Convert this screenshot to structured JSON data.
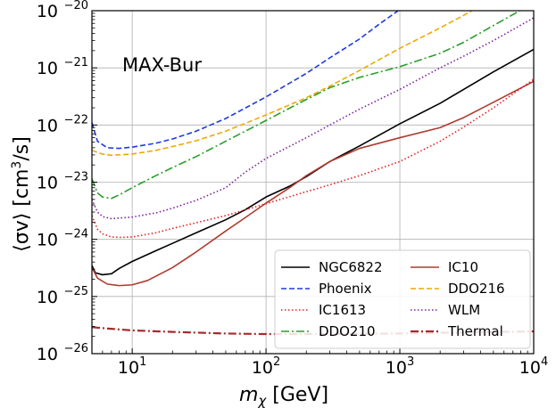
{
  "chart_data": {
    "type": "line",
    "annotation": "MAX-Bur",
    "xlabel": "m_χ [GeV]",
    "xlabel_main": "m",
    "xlabel_sub": "χ",
    "xlabel_unit": " [GeV]",
    "ylabel": "⟨σv⟩ [cm³/s]",
    "ylabel_main": "⟨σv⟩ [cm",
    "ylabel_sup": "3",
    "ylabel_unit": "/s]",
    "xscale": "log",
    "yscale": "log",
    "xlim": [
      5,
      10000
    ],
    "ylim": [
      1e-26,
      1e-20
    ],
    "grid": true,
    "legend_position": "lower-right",
    "legend_columns": 2,
    "x_ticks": [
      {
        "value": 10,
        "base": "10",
        "exp": "1"
      },
      {
        "value": 100,
        "base": "10",
        "exp": "2"
      },
      {
        "value": 1000,
        "base": "10",
        "exp": "3"
      },
      {
        "value": 10000,
        "base": "10",
        "exp": "4"
      }
    ],
    "y_ticks": [
      {
        "value": 1e-26,
        "base": "10",
        "exp": "−26"
      },
      {
        "value": 1e-25,
        "base": "10",
        "exp": "−25"
      },
      {
        "value": 1e-24,
        "base": "10",
        "exp": "−24"
      },
      {
        "value": 1e-23,
        "base": "10",
        "exp": "−23"
      },
      {
        "value": 1e-22,
        "base": "10",
        "exp": "−22"
      },
      {
        "value": 1e-21,
        "base": "10",
        "exp": "−21"
      },
      {
        "value": 1e-20,
        "base": "10",
        "exp": "−20"
      }
    ],
    "series": [
      {
        "name": "NGC6822",
        "color": "#000000",
        "style": "solid",
        "points": [
          [
            5,
            3.5e-25
          ],
          [
            5.3,
            2.6e-25
          ],
          [
            6,
            2.4e-25
          ],
          [
            7,
            2.5e-25
          ],
          [
            8,
            3.1e-25
          ],
          [
            10,
            4.1e-25
          ],
          [
            15,
            6.3e-25
          ],
          [
            20,
            8.5e-25
          ],
          [
            30,
            1.3e-24
          ],
          [
            50,
            2.2e-24
          ],
          [
            70,
            3.3e-24
          ],
          [
            100,
            5.5e-24
          ],
          [
            150,
            8.5e-24
          ],
          [
            200,
            1.25e-23
          ],
          [
            300,
            2.3e-23
          ],
          [
            500,
            4.3e-23
          ],
          [
            1000,
            1.05e-22
          ],
          [
            2000,
            2.4e-22
          ],
          [
            5000,
            8.5e-22
          ],
          [
            10000,
            2.1e-21
          ]
        ]
      },
      {
        "name": "IC10",
        "color": "#b03a2e",
        "style": "solid",
        "points": [
          [
            5,
            3.2e-25
          ],
          [
            5.5,
            2.1e-25
          ],
          [
            6.5,
            1.65e-25
          ],
          [
            8,
            1.55e-25
          ],
          [
            10,
            1.6e-25
          ],
          [
            13,
            1.9e-25
          ],
          [
            20,
            3.2e-25
          ],
          [
            30,
            6e-25
          ],
          [
            50,
            1.4e-24
          ],
          [
            70,
            2.4e-24
          ],
          [
            100,
            4.3e-24
          ],
          [
            150,
            8e-24
          ],
          [
            200,
            1.3e-23
          ],
          [
            300,
            2.3e-23
          ],
          [
            500,
            3.9e-23
          ],
          [
            1000,
            6e-23
          ],
          [
            2000,
            9e-23
          ],
          [
            3000,
            1.35e-22
          ],
          [
            5000,
            2.5e-22
          ],
          [
            10000,
            5.8e-22
          ]
        ]
      },
      {
        "name": "Phoenix",
        "color": "#1f3ae0",
        "style": "dashed",
        "points": [
          [
            5,
            1.1e-22
          ],
          [
            5.5,
            5.2e-23
          ],
          [
            6.5,
            4e-23
          ],
          [
            8,
            3.9e-23
          ],
          [
            10,
            4.1e-23
          ],
          [
            15,
            4.8e-23
          ],
          [
            20,
            5.7e-23
          ],
          [
            30,
            7.8e-23
          ],
          [
            50,
            1.3e-22
          ],
          [
            100,
            3.1e-22
          ],
          [
            200,
            8e-22
          ],
          [
            300,
            1.5e-21
          ],
          [
            500,
            3.2e-21
          ],
          [
            700,
            5.8e-21
          ],
          [
            900,
            8.8e-21
          ],
          [
            1000,
            1.05e-20
          ]
        ]
      },
      {
        "name": "DDO216",
        "color": "#f0a800",
        "style": "dashed",
        "points": [
          [
            5,
            3.6e-23
          ],
          [
            6,
            3.1e-23
          ],
          [
            7,
            2.95e-23
          ],
          [
            10,
            3.1e-23
          ],
          [
            15,
            3.6e-23
          ],
          [
            20,
            4.2e-23
          ],
          [
            30,
            5.3e-23
          ],
          [
            50,
            7.8e-23
          ],
          [
            100,
            1.5e-22
          ],
          [
            200,
            3e-22
          ],
          [
            300,
            4.8e-22
          ],
          [
            500,
            9e-22
          ],
          [
            1000,
            2.2e-21
          ],
          [
            2000,
            5e-21
          ],
          [
            3000,
            8.3e-21
          ],
          [
            3500,
            1.02e-20
          ]
        ]
      },
      {
        "name": "IC1613",
        "color": "#e32020",
        "style": "dotted",
        "points": [
          [
            5,
            2.6e-24
          ],
          [
            5.5,
            1.5e-24
          ],
          [
            6,
            1.25e-24
          ],
          [
            7,
            1.1e-24
          ],
          [
            8,
            1.08e-24
          ],
          [
            10,
            1.1e-24
          ],
          [
            15,
            1.3e-24
          ],
          [
            20,
            1.55e-24
          ],
          [
            30,
            1.95e-24
          ],
          [
            50,
            2.6e-24
          ],
          [
            100,
            4.2e-24
          ],
          [
            200,
            6.8e-24
          ],
          [
            300,
            9e-24
          ],
          [
            500,
            1.3e-23
          ],
          [
            1000,
            2.3e-23
          ],
          [
            2000,
            5.2e-23
          ],
          [
            3000,
            9.2e-23
          ],
          [
            5000,
            2e-22
          ],
          [
            10000,
            6.3e-22
          ]
        ]
      },
      {
        "name": "WLM",
        "color": "#7a1fa2",
        "style": "dotted",
        "points": [
          [
            5,
            5e-24
          ],
          [
            5.5,
            3e-24
          ],
          [
            6,
            2.5e-24
          ],
          [
            7,
            2.3e-24
          ],
          [
            10,
            2.45e-24
          ],
          [
            15,
            2.9e-24
          ],
          [
            20,
            3.5e-24
          ],
          [
            30,
            4.8e-24
          ],
          [
            50,
            8e-24
          ],
          [
            70,
            1.5e-23
          ],
          [
            100,
            2.6e-23
          ],
          [
            200,
            6e-23
          ],
          [
            300,
            1e-22
          ],
          [
            500,
            1.9e-22
          ],
          [
            1000,
            4.2e-22
          ],
          [
            2000,
            1e-21
          ],
          [
            3000,
            1.6e-21
          ],
          [
            5000,
            3e-21
          ],
          [
            10000,
            7.5e-21
          ]
        ]
      },
      {
        "name": "DDO210",
        "color": "#2a9d2a",
        "style": "dashdot",
        "points": [
          [
            5,
            1.15e-23
          ],
          [
            5.5,
            6.5e-24
          ],
          [
            6,
            5.5e-24
          ],
          [
            7,
            5.2e-24
          ],
          [
            8,
            6e-24
          ],
          [
            10,
            8e-24
          ],
          [
            15,
            1.3e-23
          ],
          [
            20,
            1.8e-23
          ],
          [
            30,
            2.8e-23
          ],
          [
            50,
            5.2e-23
          ],
          [
            100,
            1.2e-22
          ],
          [
            200,
            2.8e-22
          ],
          [
            300,
            4.5e-22
          ],
          [
            500,
            6.8e-22
          ],
          [
            1000,
            1.05e-21
          ],
          [
            2000,
            1.8e-21
          ],
          [
            3000,
            2.8e-21
          ],
          [
            5000,
            5.5e-21
          ],
          [
            8000,
            1.02e-20
          ]
        ]
      },
      {
        "name": "Thermal",
        "color": "#a52a2a",
        "style": "dashdot",
        "points": [
          [
            5,
            2.9e-26
          ],
          [
            6,
            2.8e-26
          ],
          [
            8,
            2.65e-26
          ],
          [
            10,
            2.55e-26
          ],
          [
            20,
            2.4e-26
          ],
          [
            50,
            2.25e-26
          ],
          [
            100,
            2.2e-26
          ],
          [
            300,
            2.2e-26
          ],
          [
            1000,
            2.25e-26
          ],
          [
            3000,
            2.35e-26
          ],
          [
            10000,
            2.45e-26
          ]
        ]
      }
    ]
  }
}
